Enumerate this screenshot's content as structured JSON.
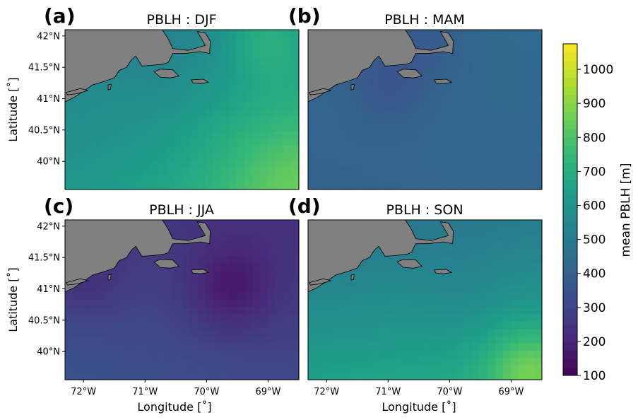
{
  "figure": {
    "panel_letters": [
      "(a)",
      "(b)",
      "(c)",
      "(d)"
    ],
    "ylabel": "Latitude [˚]",
    "xlabel": "Longitude [˚]",
    "colorbar": {
      "label": "mean PBLH [m]",
      "range": [
        100,
        1075
      ],
      "ticks": [
        100,
        200,
        300,
        400,
        500,
        600,
        700,
        800,
        900,
        1000
      ],
      "colormap": "viridis"
    },
    "land_color": "#808080",
    "xticks": [
      "72°W",
      "71°W",
      "70°W",
      "69°W"
    ],
    "yticks": [
      "42°N",
      "41.5°N",
      "41°N",
      "40.5°N",
      "40°N"
    ]
  },
  "chart_data": [
    {
      "type": "heatmap",
      "title": "PBLH : DJF",
      "xlim": [
        -72.3,
        -68.5
      ],
      "ylim": [
        39.55,
        42.1
      ],
      "field": {
        "base": 600,
        "x_gradient": 30,
        "y_gradient": -50,
        "corner_high": {
          "lon": -68.5,
          "lat": 39.6,
          "value": 770
        },
        "local_features": [
          {
            "lon": -70.8,
            "lat": 41.7,
            "value": 575
          },
          {
            "lon": -69.0,
            "lat": 42.0,
            "value": 720
          }
        ]
      }
    },
    {
      "type": "heatmap",
      "title": "PBLH : MAM",
      "xlim": [
        -72.3,
        -68.5
      ],
      "ylim": [
        39.55,
        42.1
      ],
      "field": {
        "base": 420,
        "x_gradient": 5,
        "y_gradient": 10,
        "local_features": [
          {
            "lon": -71.0,
            "lat": 41.3,
            "value": 360
          },
          {
            "lon": -70.3,
            "lat": 42.0,
            "value": 380
          }
        ]
      }
    },
    {
      "type": "heatmap",
      "title": "PBLH : JJA",
      "xlim": [
        -72.3,
        -68.5
      ],
      "ylim": [
        39.55,
        42.1
      ],
      "field": {
        "base": 290,
        "x_gradient": -20,
        "y_gradient": -40,
        "local_features": [
          {
            "lon": -69.6,
            "lat": 41.0,
            "value": 180
          },
          {
            "lon": -72.0,
            "lat": 41.2,
            "value": 230
          }
        ]
      }
    },
    {
      "type": "heatmap",
      "title": "PBLH : SON",
      "xlim": [
        -72.3,
        -68.5
      ],
      "ylim": [
        39.55,
        42.1
      ],
      "field": {
        "base": 580,
        "x_gradient": 20,
        "y_gradient": -90,
        "local_features": [
          {
            "lon": -69.8,
            "lat": 41.0,
            "value": 560
          },
          {
            "lon": -68.7,
            "lat": 39.7,
            "value": 770
          }
        ]
      }
    }
  ]
}
